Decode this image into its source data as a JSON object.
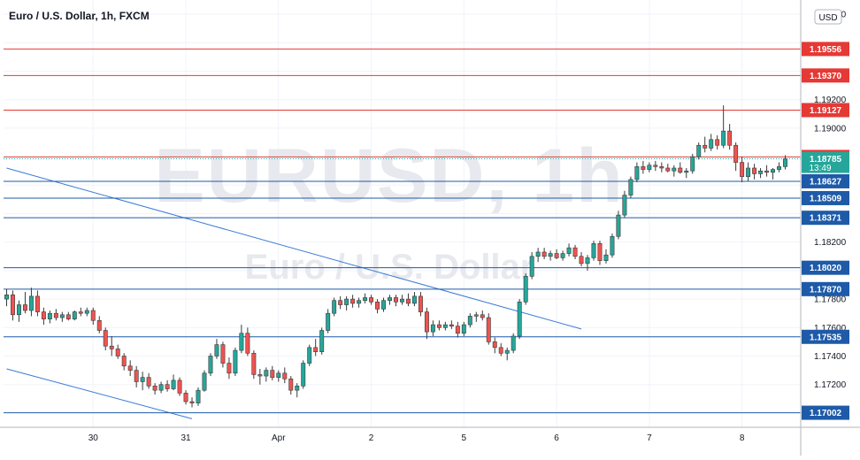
{
  "chart_data": {
    "type": "candlestick",
    "title": "Euro / U.S. Dollar, 1h, FXCM",
    "currency": "USD",
    "watermark": {
      "symbol": "EURUSD, 1h",
      "name": "Euro / U.S. Dollar"
    },
    "ylim": [
      1.169,
      1.199
    ],
    "y_ticks": [
      1.172,
      1.174,
      1.176,
      1.178,
      1.18,
      1.182,
      1.184,
      1.186,
      1.188,
      1.19,
      1.192,
      1.194,
      1.196,
      1.198
    ],
    "y_tick_labels": [
      "1.17200",
      "1.17400",
      "1.17600",
      "1.17800",
      "",
      "1.18200",
      "",
      "",
      "",
      "1.19000",
      "1.19200",
      "",
      "",
      "1.19800"
    ],
    "x_labels": [
      "30",
      "31",
      "Apr",
      "2",
      "5",
      "6",
      "7",
      "8"
    ],
    "x_label_positions": [
      14,
      29,
      44,
      59,
      74,
      89,
      104,
      119
    ],
    "resistance_levels": [
      "1.19556",
      "1.19370",
      "1.19127",
      "1.18798"
    ],
    "support_levels": [
      "1.18627",
      "1.18509",
      "1.18371",
      "1.18020",
      "1.17870",
      "1.17535",
      "1.17002"
    ],
    "current_price": "1.18785",
    "countdown": "13:49",
    "colors": {
      "up": "#26a69a",
      "down": "#ef5350",
      "resistance": "#e53935",
      "support": "#1e5aa8",
      "trend": "#3a7bd5",
      "current": "#26a69a"
    },
    "trendlines": [
      {
        "from": [
          0,
          1.1872
        ],
        "to": [
          93,
          1.1759
        ]
      },
      {
        "from": [
          0,
          1.1731
        ],
        "to": [
          30,
          1.1696
        ]
      }
    ],
    "candles": [
      [
        1.178,
        1.1787,
        1.1775,
        1.1783
      ],
      [
        1.1783,
        1.1786,
        1.1765,
        1.1769
      ],
      [
        1.1769,
        1.1779,
        1.1764,
        1.1776
      ],
      [
        1.1776,
        1.1785,
        1.177,
        1.1772
      ],
      [
        1.1772,
        1.1788,
        1.1768,
        1.1782
      ],
      [
        1.1782,
        1.1786,
        1.1768,
        1.1771
      ],
      [
        1.1771,
        1.1774,
        1.1762,
        1.1766
      ],
      [
        1.1766,
        1.1772,
        1.1763,
        1.177
      ],
      [
        1.177,
        1.1773,
        1.1765,
        1.1767
      ],
      [
        1.1767,
        1.1771,
        1.1764,
        1.1769
      ],
      [
        1.1769,
        1.1771,
        1.1765,
        1.1766
      ],
      [
        1.1766,
        1.1772,
        1.1765,
        1.1771
      ],
      [
        1.1771,
        1.1774,
        1.1768,
        1.177
      ],
      [
        1.177,
        1.1774,
        1.1768,
        1.1772
      ],
      [
        1.1772,
        1.1774,
        1.1762,
        1.1765
      ],
      [
        1.1765,
        1.1768,
        1.1756,
        1.1758
      ],
      [
        1.1758,
        1.176,
        1.1744,
        1.1747
      ],
      [
        1.1747,
        1.1754,
        1.174,
        1.1745
      ],
      [
        1.1745,
        1.1748,
        1.1738,
        1.174
      ],
      [
        1.174,
        1.1742,
        1.173,
        1.1733
      ],
      [
        1.1733,
        1.1737,
        1.1726,
        1.173
      ],
      [
        1.173,
        1.1733,
        1.1718,
        1.1722
      ],
      [
        1.1722,
        1.1729,
        1.1716,
        1.1725
      ],
      [
        1.1725,
        1.1728,
        1.1717,
        1.1719
      ],
      [
        1.1719,
        1.1721,
        1.1713,
        1.1716
      ],
      [
        1.1716,
        1.1722,
        1.1714,
        1.172
      ],
      [
        1.172,
        1.1723,
        1.1715,
        1.1717
      ],
      [
        1.1717,
        1.1727,
        1.1716,
        1.1723
      ],
      [
        1.1723,
        1.1725,
        1.1712,
        1.1714
      ],
      [
        1.1714,
        1.1716,
        1.1706,
        1.1708
      ],
      [
        1.1708,
        1.1711,
        1.1704,
        1.1707
      ],
      [
        1.1707,
        1.1718,
        1.1705,
        1.1716
      ],
      [
        1.1716,
        1.173,
        1.1715,
        1.1728
      ],
      [
        1.1728,
        1.1742,
        1.1726,
        1.174
      ],
      [
        1.174,
        1.1752,
        1.1738,
        1.1748
      ],
      [
        1.1748,
        1.175,
        1.1732,
        1.1735
      ],
      [
        1.1735,
        1.1739,
        1.1724,
        1.1728
      ],
      [
        1.1728,
        1.1746,
        1.1726,
        1.1744
      ],
      [
        1.1744,
        1.1762,
        1.1742,
        1.1756
      ],
      [
        1.1756,
        1.176,
        1.174,
        1.1742
      ],
      [
        1.1742,
        1.1744,
        1.1724,
        1.1727
      ],
      [
        1.1727,
        1.1731,
        1.172,
        1.1726
      ],
      [
        1.1726,
        1.1732,
        1.1722,
        1.173
      ],
      [
        1.173,
        1.1733,
        1.1723,
        1.1725
      ],
      [
        1.1725,
        1.173,
        1.1722,
        1.1728
      ],
      [
        1.1728,
        1.1732,
        1.1721,
        1.1724
      ],
      [
        1.1724,
        1.1726,
        1.1713,
        1.1716
      ],
      [
        1.1716,
        1.1721,
        1.1711,
        1.1719
      ],
      [
        1.1719,
        1.1737,
        1.1717,
        1.1735
      ],
      [
        1.1735,
        1.1748,
        1.1733,
        1.1746
      ],
      [
        1.1746,
        1.1752,
        1.174,
        1.1743
      ],
      [
        1.1743,
        1.176,
        1.1741,
        1.1758
      ],
      [
        1.1758,
        1.1773,
        1.1756,
        1.177
      ],
      [
        1.177,
        1.1781,
        1.1768,
        1.1779
      ],
      [
        1.1779,
        1.1782,
        1.1773,
        1.1776
      ],
      [
        1.1776,
        1.1782,
        1.1772,
        1.178
      ],
      [
        1.178,
        1.1783,
        1.1774,
        1.1777
      ],
      [
        1.1777,
        1.1781,
        1.1774,
        1.1779
      ],
      [
        1.1779,
        1.1784,
        1.1777,
        1.1781
      ],
      [
        1.1781,
        1.1783,
        1.1776,
        1.1778
      ],
      [
        1.1778,
        1.178,
        1.177,
        1.1773
      ],
      [
        1.1773,
        1.1781,
        1.1771,
        1.1779
      ],
      [
        1.1779,
        1.1783,
        1.1776,
        1.1781
      ],
      [
        1.1781,
        1.1783,
        1.1775,
        1.1778
      ],
      [
        1.1778,
        1.1783,
        1.1776,
        1.178
      ],
      [
        1.178,
        1.1784,
        1.1775,
        1.1777
      ],
      [
        1.1777,
        1.1785,
        1.1775,
        1.1782
      ],
      [
        1.1782,
        1.1785,
        1.1768,
        1.1771
      ],
      [
        1.1771,
        1.1774,
        1.1752,
        1.1757
      ],
      [
        1.1757,
        1.1765,
        1.1754,
        1.1762
      ],
      [
        1.1762,
        1.1765,
        1.1758,
        1.176
      ],
      [
        1.176,
        1.1764,
        1.1758,
        1.1762
      ],
      [
        1.1762,
        1.1765,
        1.1759,
        1.1761
      ],
      [
        1.1761,
        1.1764,
        1.1753,
        1.1756
      ],
      [
        1.1756,
        1.1764,
        1.1754,
        1.1762
      ],
      [
        1.1762,
        1.177,
        1.176,
        1.1768
      ],
      [
        1.1768,
        1.1771,
        1.1764,
        1.1769
      ],
      [
        1.1769,
        1.1772,
        1.1765,
        1.1767
      ],
      [
        1.1767,
        1.177,
        1.1748,
        1.175
      ],
      [
        1.175,
        1.1753,
        1.1742,
        1.1746
      ],
      [
        1.1746,
        1.1749,
        1.174,
        1.1742
      ],
      [
        1.1742,
        1.1746,
        1.1737,
        1.1744
      ],
      [
        1.1744,
        1.1756,
        1.1742,
        1.1754
      ],
      [
        1.1754,
        1.178,
        1.1752,
        1.1778
      ],
      [
        1.1778,
        1.1798,
        1.1776,
        1.1796
      ],
      [
        1.1796,
        1.1813,
        1.1794,
        1.181
      ],
      [
        1.181,
        1.1816,
        1.1806,
        1.1813
      ],
      [
        1.1813,
        1.1816,
        1.1808,
        1.181
      ],
      [
        1.181,
        1.1814,
        1.1807,
        1.1812
      ],
      [
        1.1812,
        1.1815,
        1.1808,
        1.1809
      ],
      [
        1.1809,
        1.1814,
        1.1807,
        1.1812
      ],
      [
        1.1812,
        1.1819,
        1.181,
        1.1816
      ],
      [
        1.1816,
        1.1818,
        1.1808,
        1.181
      ],
      [
        1.181,
        1.1813,
        1.1803,
        1.1805
      ],
      [
        1.1805,
        1.1811,
        1.18,
        1.1809
      ],
      [
        1.1809,
        1.1821,
        1.1807,
        1.1819
      ],
      [
        1.1819,
        1.1821,
        1.1804,
        1.1807
      ],
      [
        1.1807,
        1.1815,
        1.1805,
        1.1811
      ],
      [
        1.1811,
        1.1826,
        1.1809,
        1.1824
      ],
      [
        1.1824,
        1.1842,
        1.1822,
        1.1839
      ],
      [
        1.1839,
        1.1856,
        1.1837,
        1.1853
      ],
      [
        1.1853,
        1.1866,
        1.1851,
        1.1864
      ],
      [
        1.1864,
        1.1876,
        1.1862,
        1.1873
      ],
      [
        1.1873,
        1.1877,
        1.1868,
        1.1871
      ],
      [
        1.1871,
        1.1876,
        1.1869,
        1.1874
      ],
      [
        1.1874,
        1.1877,
        1.187,
        1.1873
      ],
      [
        1.1873,
        1.1876,
        1.1869,
        1.1872
      ],
      [
        1.1872,
        1.1875,
        1.1869,
        1.187
      ],
      [
        1.187,
        1.1874,
        1.1866,
        1.1872
      ],
      [
        1.1872,
        1.1876,
        1.1868,
        1.1869
      ],
      [
        1.1869,
        1.1872,
        1.1865,
        1.187
      ],
      [
        1.187,
        1.1882,
        1.1868,
        1.188
      ],
      [
        1.188,
        1.189,
        1.1878,
        1.1888
      ],
      [
        1.1888,
        1.1894,
        1.1883,
        1.1886
      ],
      [
        1.1886,
        1.1896,
        1.1884,
        1.1892
      ],
      [
        1.1892,
        1.1895,
        1.1885,
        1.1888
      ],
      [
        1.1888,
        1.1916,
        1.1886,
        1.1898
      ],
      [
        1.1898,
        1.1903,
        1.1885,
        1.1888
      ],
      [
        1.1888,
        1.189,
        1.187,
        1.1876
      ],
      [
        1.1876,
        1.188,
        1.1862,
        1.1866
      ],
      [
        1.1866,
        1.1876,
        1.1863,
        1.1872
      ],
      [
        1.1872,
        1.1875,
        1.1864,
        1.1868
      ],
      [
        1.1868,
        1.1872,
        1.1865,
        1.187
      ],
      [
        1.187,
        1.1874,
        1.1866,
        1.1869
      ],
      [
        1.1869,
        1.1872,
        1.1864,
        1.1871
      ],
      [
        1.1871,
        1.1876,
        1.1869,
        1.1873
      ],
      [
        1.1873,
        1.1881,
        1.1871,
        1.18785
      ]
    ]
  }
}
